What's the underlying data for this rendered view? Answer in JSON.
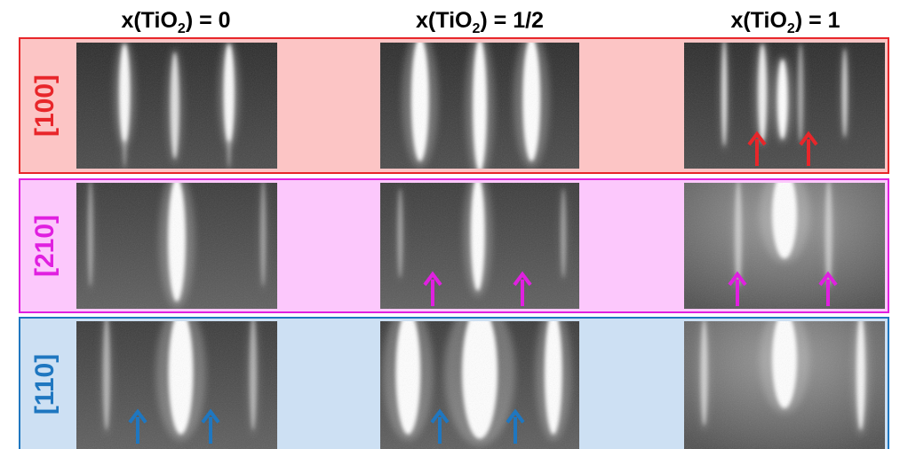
{
  "columns": [
    {
      "prefix": "x(TiO",
      "subscript": "2",
      "suffix": ") = 0"
    },
    {
      "prefix": "x(TiO",
      "subscript": "2",
      "suffix": ") = 1/2"
    },
    {
      "prefix": "x(TiO",
      "subscript": "2",
      "suffix": ") = 1"
    }
  ],
  "rows": [
    {
      "label": "[100]"
    },
    {
      "label": "[210]"
    },
    {
      "label": "[110]"
    }
  ]
}
